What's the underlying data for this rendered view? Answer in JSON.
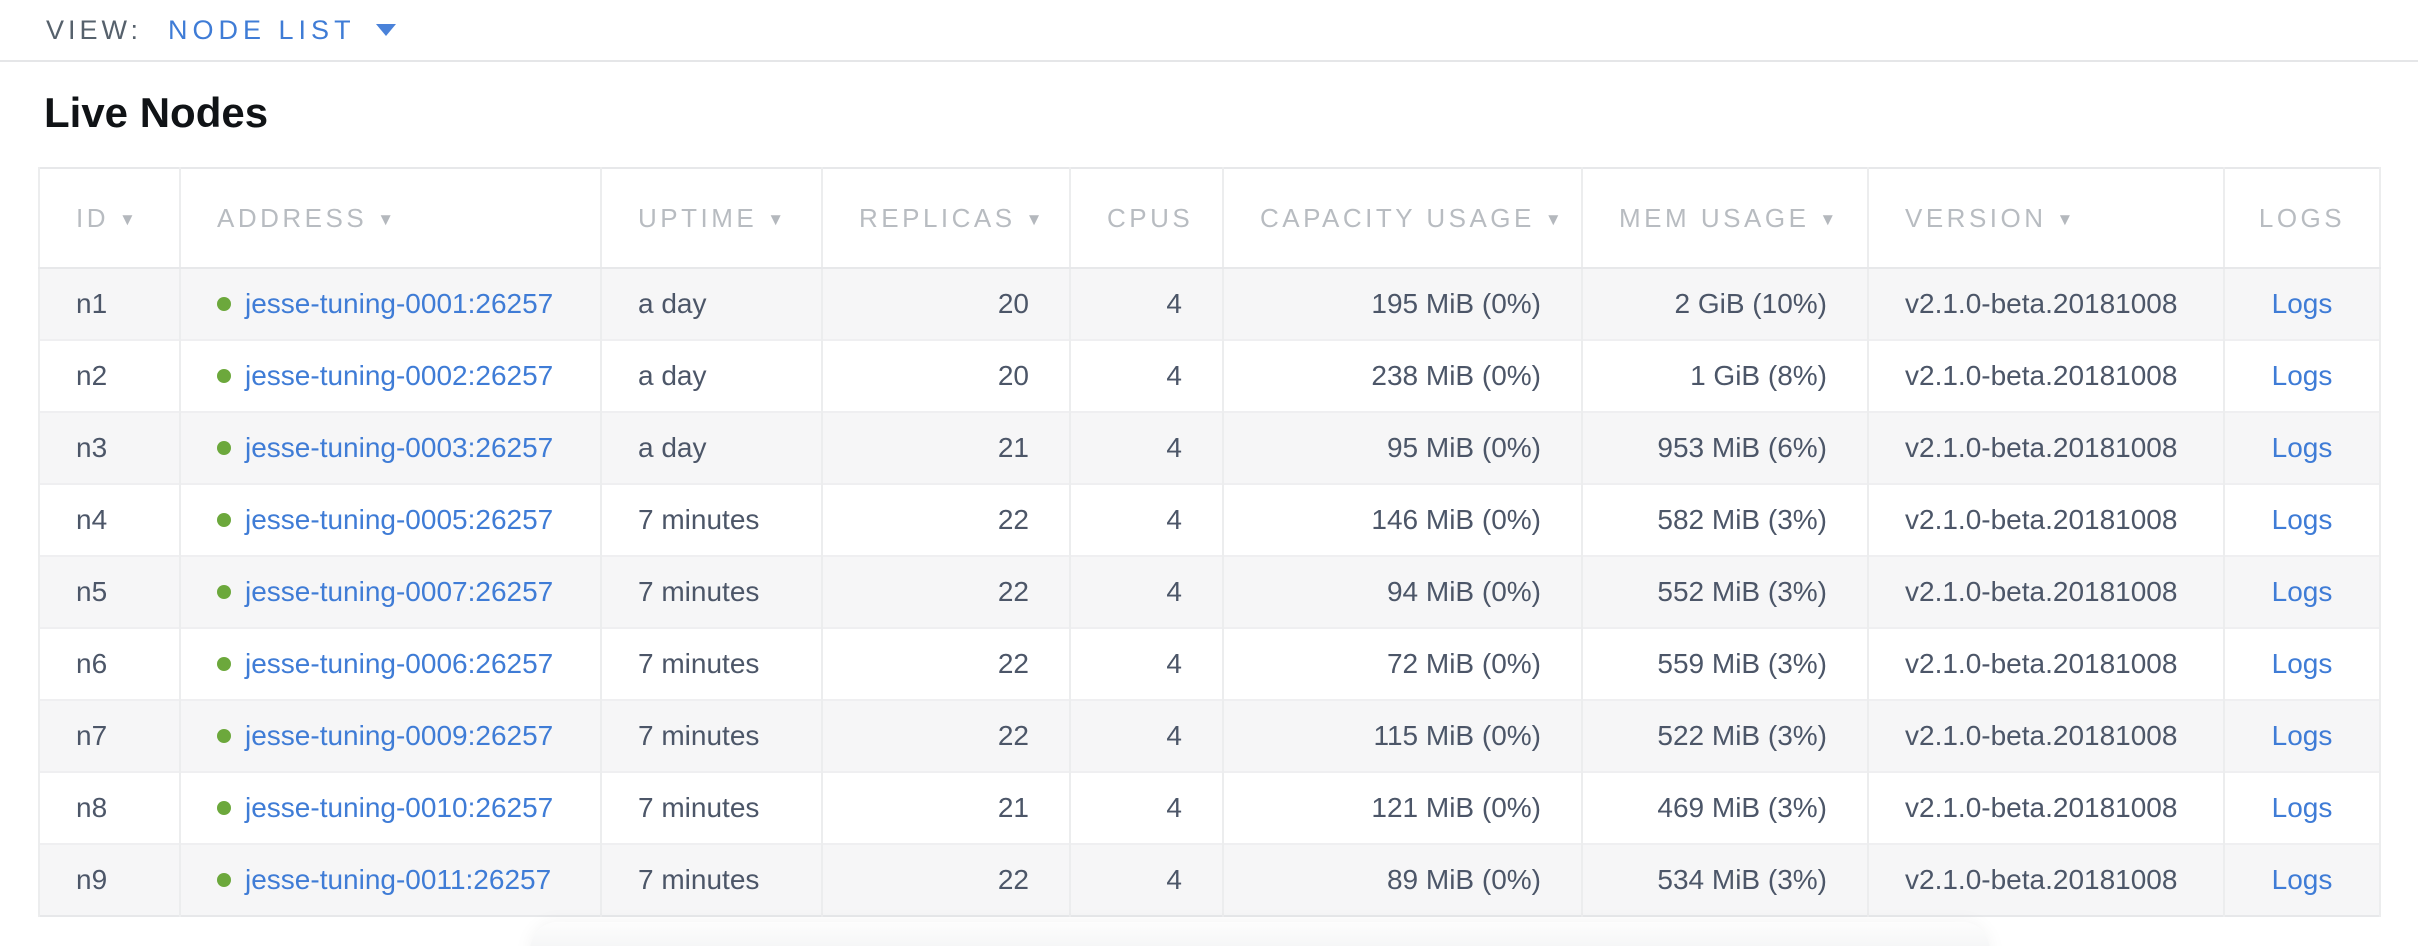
{
  "view_bar": {
    "label": "VIEW:",
    "selected_view": "NODE LIST"
  },
  "page": {
    "title": "Live Nodes"
  },
  "table": {
    "columns": [
      {
        "key": "id",
        "label": "ID",
        "sort_icon": true
      },
      {
        "key": "address",
        "label": "ADDRESS",
        "sort_icon": true
      },
      {
        "key": "uptime",
        "label": "UPTIME",
        "sort_icon": true
      },
      {
        "key": "replicas",
        "label": "REPLICAS",
        "sort_icon": true
      },
      {
        "key": "cpus",
        "label": "CPUS",
        "sort_icon": false
      },
      {
        "key": "capacity_usage",
        "label": "CAPACITY USAGE",
        "sort_icon": true
      },
      {
        "key": "mem_usage",
        "label": "MEM USAGE",
        "sort_icon": true
      },
      {
        "key": "version",
        "label": "VERSION",
        "sort_icon": true
      },
      {
        "key": "logs",
        "label": "LOGS",
        "sort_icon": false
      }
    ],
    "rows": [
      {
        "id": "n1",
        "status": "healthy",
        "address": "jesse-tuning-0001:26257",
        "uptime": "a day",
        "replicas": "20",
        "cpus": "4",
        "capacity_usage": "195 MiB (0%)",
        "mem_usage": "2 GiB (10%)",
        "version": "v2.1.0-beta.20181008",
        "logs": "Logs"
      },
      {
        "id": "n2",
        "status": "healthy",
        "address": "jesse-tuning-0002:26257",
        "uptime": "a day",
        "replicas": "20",
        "cpus": "4",
        "capacity_usage": "238 MiB (0%)",
        "mem_usage": "1 GiB (8%)",
        "version": "v2.1.0-beta.20181008",
        "logs": "Logs"
      },
      {
        "id": "n3",
        "status": "healthy",
        "address": "jesse-tuning-0003:26257",
        "uptime": "a day",
        "replicas": "21",
        "cpus": "4",
        "capacity_usage": "95 MiB (0%)",
        "mem_usage": "953 MiB (6%)",
        "version": "v2.1.0-beta.20181008",
        "logs": "Logs"
      },
      {
        "id": "n4",
        "status": "healthy",
        "address": "jesse-tuning-0005:26257",
        "uptime": "7 minutes",
        "replicas": "22",
        "cpus": "4",
        "capacity_usage": "146 MiB (0%)",
        "mem_usage": "582 MiB (3%)",
        "version": "v2.1.0-beta.20181008",
        "logs": "Logs"
      },
      {
        "id": "n5",
        "status": "healthy",
        "address": "jesse-tuning-0007:26257",
        "uptime": "7 minutes",
        "replicas": "22",
        "cpus": "4",
        "capacity_usage": "94 MiB (0%)",
        "mem_usage": "552 MiB (3%)",
        "version": "v2.1.0-beta.20181008",
        "logs": "Logs"
      },
      {
        "id": "n6",
        "status": "healthy",
        "address": "jesse-tuning-0006:26257",
        "uptime": "7 minutes",
        "replicas": "22",
        "cpus": "4",
        "capacity_usage": "72 MiB (0%)",
        "mem_usage": "559 MiB (3%)",
        "version": "v2.1.0-beta.20181008",
        "logs": "Logs"
      },
      {
        "id": "n7",
        "status": "healthy",
        "address": "jesse-tuning-0009:26257",
        "uptime": "7 minutes",
        "replicas": "22",
        "cpus": "4",
        "capacity_usage": "115 MiB (0%)",
        "mem_usage": "522 MiB (3%)",
        "version": "v2.1.0-beta.20181008",
        "logs": "Logs"
      },
      {
        "id": "n8",
        "status": "healthy",
        "address": "jesse-tuning-0010:26257",
        "uptime": "7 minutes",
        "replicas": "21",
        "cpus": "4",
        "capacity_usage": "121 MiB (0%)",
        "mem_usage": "469 MiB (3%)",
        "version": "v2.1.0-beta.20181008",
        "logs": "Logs"
      },
      {
        "id": "n9",
        "status": "healthy",
        "address": "jesse-tuning-0011:26257",
        "uptime": "7 minutes",
        "replicas": "22",
        "cpus": "4",
        "capacity_usage": "89 MiB (0%)",
        "mem_usage": "534 MiB (3%)",
        "version": "v2.1.0-beta.20181008",
        "logs": "Logs"
      }
    ]
  },
  "icons": {
    "sort_icon_glyph": "▼",
    "status_dot": "green-dot-icon",
    "dropdown": "caret-down-icon"
  },
  "colors": {
    "link_blue": "#3f7cd6",
    "healthy_green": "#6ca83c",
    "header_gray": "#b8bcc1",
    "body_text": "#4c5668",
    "row_alt_bg": "#f6f6f7",
    "border": "#e7e8ea"
  }
}
